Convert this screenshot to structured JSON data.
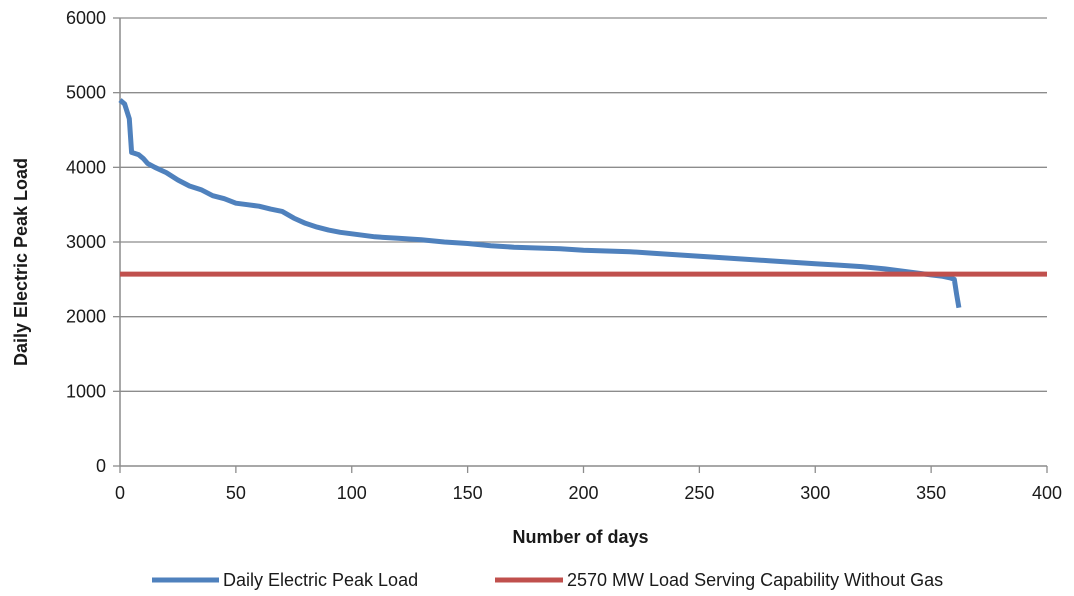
{
  "chart_data": {
    "type": "line",
    "xlabel": "Number of days",
    "ylabel": "Daily Electric Peak Load",
    "xlim": [
      0,
      400
    ],
    "ylim": [
      0,
      6000
    ],
    "x_ticks": [
      0,
      50,
      100,
      150,
      200,
      250,
      300,
      350,
      400
    ],
    "y_ticks": [
      0,
      1000,
      2000,
      3000,
      4000,
      5000,
      6000
    ],
    "grid": "horizontal",
    "legend_position": "bottom",
    "series": [
      {
        "name": "Daily Electric Peak Load",
        "color": "#4f81bd",
        "x": [
          0,
          2,
          4,
          5,
          8,
          10,
          12,
          15,
          20,
          25,
          30,
          35,
          40,
          45,
          50,
          55,
          60,
          65,
          70,
          75,
          80,
          85,
          90,
          95,
          100,
          110,
          120,
          130,
          140,
          150,
          160,
          170,
          180,
          190,
          200,
          210,
          220,
          230,
          240,
          250,
          260,
          270,
          280,
          290,
          300,
          310,
          320,
          330,
          340,
          350,
          355,
          358,
          360,
          361,
          362
        ],
        "y": [
          4900,
          4850,
          4650,
          4200,
          4170,
          4120,
          4050,
          4000,
          3930,
          3830,
          3750,
          3700,
          3620,
          3580,
          3520,
          3500,
          3480,
          3440,
          3410,
          3320,
          3250,
          3200,
          3160,
          3130,
          3110,
          3070,
          3050,
          3030,
          3000,
          2980,
          2950,
          2930,
          2920,
          2910,
          2890,
          2880,
          2870,
          2850,
          2830,
          2810,
          2790,
          2770,
          2750,
          2730,
          2710,
          2690,
          2670,
          2640,
          2600,
          2560,
          2540,
          2520,
          2500,
          2300,
          2120
        ]
      },
      {
        "name": "2570 MW Load Serving Capability Without Gas",
        "color": "#c0504d",
        "x": [
          0,
          400
        ],
        "y": [
          2570,
          2570
        ]
      }
    ]
  }
}
